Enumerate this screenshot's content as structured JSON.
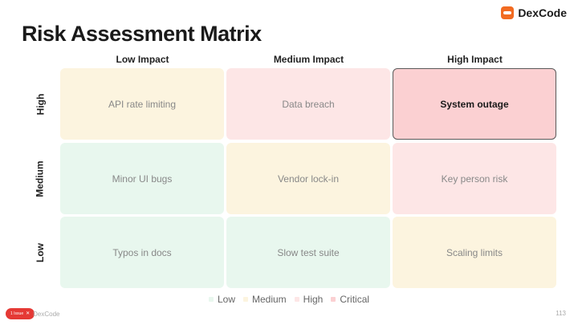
{
  "brand": {
    "name": "DexCode",
    "logo_icon": "dexcode-logo-icon",
    "accent": "#f26b21"
  },
  "title": "Risk Assessment Matrix",
  "columns": [
    "Low Impact",
    "Medium Impact",
    "High Impact"
  ],
  "rows": [
    {
      "label": "High",
      "cells": [
        {
          "text": "API rate limiting",
          "level": "medium"
        },
        {
          "text": "Data breach",
          "level": "high"
        },
        {
          "text": "System outage",
          "level": "critical"
        }
      ]
    },
    {
      "label": "Medium",
      "cells": [
        {
          "text": "Minor UI bugs",
          "level": "low"
        },
        {
          "text": "Vendor lock-in",
          "level": "medium"
        },
        {
          "text": "Key person risk",
          "level": "high"
        }
      ]
    },
    {
      "label": "Low",
      "cells": [
        {
          "text": "Typos in docs",
          "level": "low"
        },
        {
          "text": "Slow test suite",
          "level": "low"
        },
        {
          "text": "Scaling limits",
          "level": "medium"
        }
      ]
    }
  ],
  "legend": [
    {
      "label": "Low",
      "color": "#e8f7ee"
    },
    {
      "label": "Medium",
      "color": "#fcf4df"
    },
    {
      "label": "High",
      "color": "#fde6e6"
    },
    {
      "label": "Critical",
      "color": "#fbd0d2"
    }
  ],
  "footer": {
    "issue_badge": "1 Issue",
    "brand": "DexCode",
    "page_number": "113"
  }
}
